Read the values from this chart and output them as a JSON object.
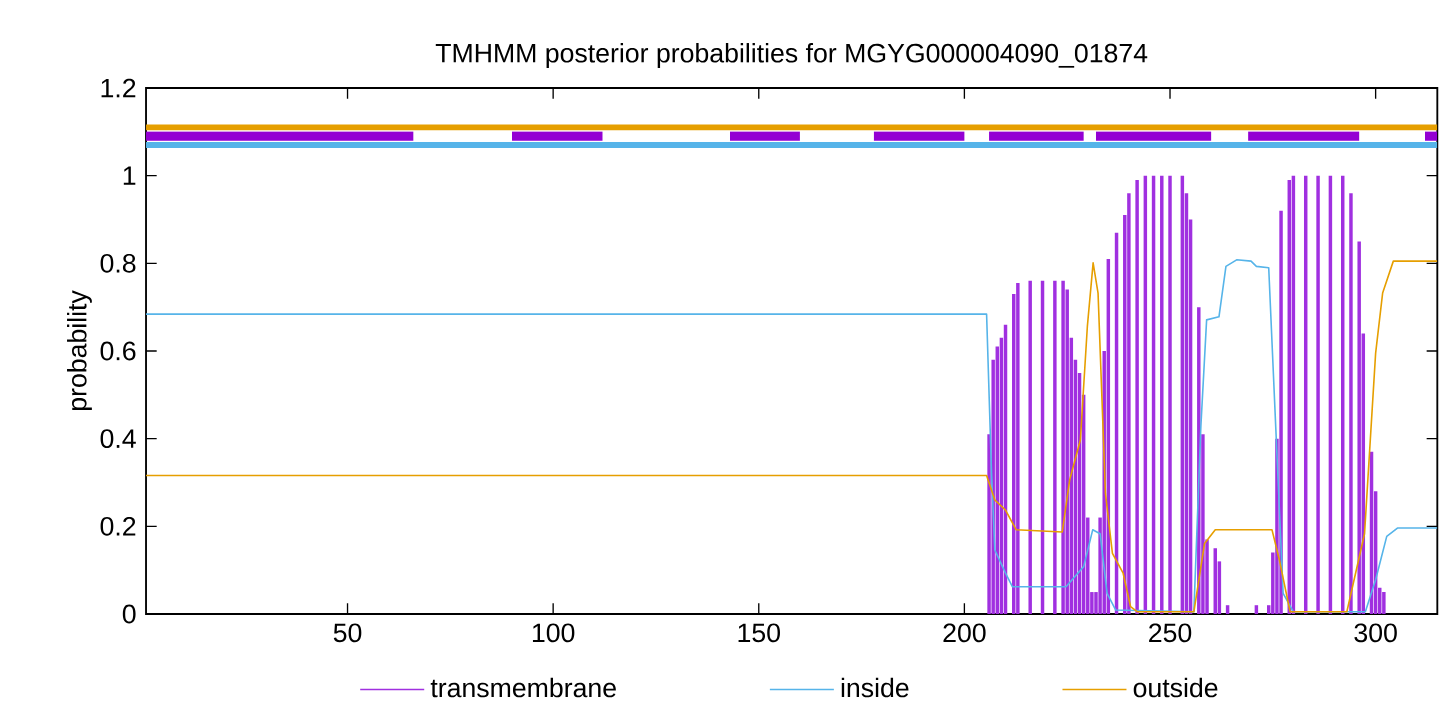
{
  "chart_data": {
    "type": "line",
    "title": "TMHMM posterior probabilities for MGYG000004090_01874",
    "ylabel": "probability",
    "xlim": [
      1,
      315
    ],
    "ylim": [
      0,
      1.2
    ],
    "xticks": [
      50,
      100,
      150,
      200,
      250,
      300
    ],
    "yticks": [
      0,
      0.2,
      0.4,
      0.6,
      0.8,
      1,
      1.2
    ],
    "grid": false,
    "legend": "bottom",
    "marker": "none",
    "series": [
      {
        "name": "transmembrane",
        "type": "bar",
        "color": "#a030e0",
        "x": [
          206,
          207,
          208,
          209,
          210,
          212,
          213,
          216,
          219,
          222,
          224,
          225,
          226,
          227,
          228,
          229,
          230,
          231,
          232,
          233,
          234,
          235,
          237,
          239,
          240,
          242,
          244,
          246,
          248,
          250,
          253,
          254,
          255,
          257,
          258,
          259,
          261,
          262,
          264,
          271,
          274,
          275,
          276,
          277,
          279,
          280,
          283,
          286,
          289,
          292,
          294,
          296,
          297,
          299,
          300,
          301,
          302
        ],
        "values": [
          0.41,
          0.58,
          0.61,
          0.63,
          0.66,
          0.73,
          0.755,
          0.76,
          0.76,
          0.76,
          0.76,
          0.74,
          0.63,
          0.58,
          0.55,
          0.5,
          0.22,
          0.05,
          0.05,
          0.22,
          0.6,
          0.81,
          0.87,
          0.91,
          0.96,
          0.99,
          1.0,
          1.0,
          1.0,
          1.0,
          1.0,
          0.96,
          0.9,
          0.7,
          0.41,
          0.17,
          0.15,
          0.12,
          0.02,
          0.02,
          0.02,
          0.14,
          0.4,
          0.92,
          0.99,
          1.0,
          1.0,
          1.0,
          1.0,
          1.0,
          0.96,
          0.85,
          0.64,
          0.37,
          0.28,
          0.06,
          0.05
        ]
      },
      {
        "name": "inside",
        "color": "#56b4e9",
        "x": [
          1,
          205.4,
          206.6,
          207.4,
          210,
          211.7,
          224.7,
          229,
          231.2,
          233,
          234.7,
          236.8,
          255.8,
          257.5,
          258.9,
          261.9,
          263.6,
          266.2,
          269.7,
          271,
          274,
          275.7,
          277.5,
          280,
          297.5,
          300,
          302.7,
          305.3,
          315
        ],
        "values": [
          0.684,
          0.684,
          0.321,
          0.146,
          0.093,
          0.062,
          0.062,
          0.108,
          0.192,
          0.183,
          0.047,
          0.009,
          0.005,
          0.428,
          0.671,
          0.678,
          0.793,
          0.808,
          0.805,
          0.793,
          0.79,
          0.428,
          0.047,
          0.005,
          0.005,
          0.078,
          0.177,
          0.196,
          0.196
        ]
      },
      {
        "name": "outside",
        "color": "#e69f00",
        "x": [
          1,
          205.4,
          207.4,
          210,
          212.6,
          223.8,
          225.6,
          228.2,
          229.9,
          231.3,
          232.5,
          234.3,
          236,
          238.6,
          240.4,
          242.1,
          255.8,
          258.4,
          261,
          274.8,
          276.6,
          279.2,
          293,
          297.3,
          300,
          301.7,
          304.3,
          315
        ],
        "values": [
          0.316,
          0.316,
          0.26,
          0.237,
          0.192,
          0.187,
          0.306,
          0.397,
          0.656,
          0.801,
          0.732,
          0.275,
          0.138,
          0.093,
          0.017,
          0.005,
          0.005,
          0.161,
          0.192,
          0.192,
          0.123,
          0.005,
          0.005,
          0.183,
          0.595,
          0.732,
          0.805,
          0.805
        ]
      },
      {
        "color": "#e69f00",
        "x": [
          1,
          315
        ],
        "values": [
          1.11,
          1.11
        ]
      },
      {
        "color": "#56b4e9",
        "x": [
          1,
          315
        ],
        "values": [
          1.07,
          1.07
        ]
      },
      {
        "color": "#9400d3",
        "x": [
          1,
          66,
          78,
          90,
          112,
          128,
          143,
          160,
          169,
          178,
          200,
          203,
          206,
          229,
          230,
          232,
          260,
          264,
          269,
          296,
          304,
          312,
          315
        ],
        "values": [
          1.09,
          1.09,
          null,
          1.09,
          1.09,
          null,
          1.09,
          1.09,
          null,
          1.09,
          1.09,
          null,
          1.09,
          1.09,
          null,
          1.09,
          1.09,
          null,
          1.09,
          1.09,
          null,
          1.09,
          1.09
        ]
      }
    ]
  }
}
